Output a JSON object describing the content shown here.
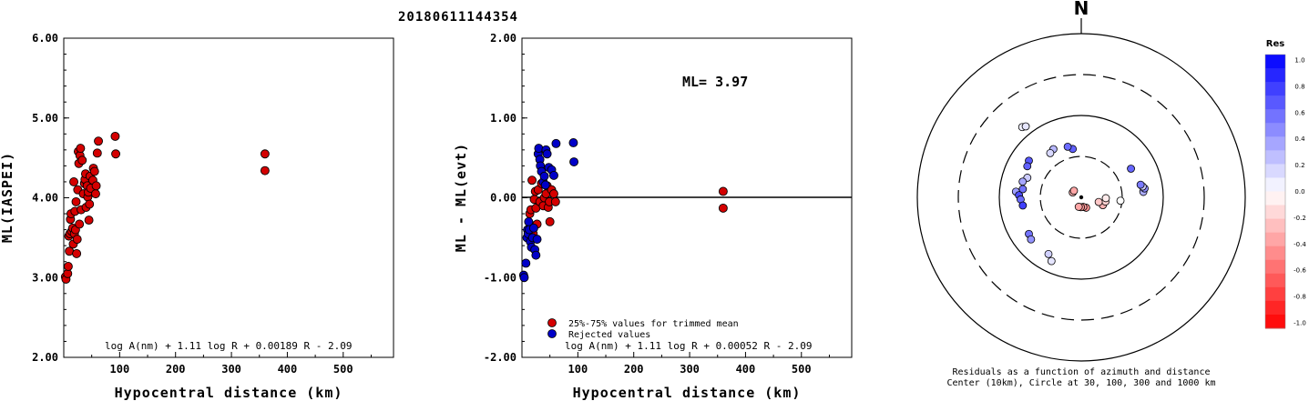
{
  "title": "20180611144354",
  "chart_data": [
    {
      "type": "scatter",
      "name": "ml-vs-distance",
      "xlabel": "Hypocentral distance (km)",
      "ylabel": "ML(IASPEI)",
      "xlim": [
        0,
        590
      ],
      "ylim": [
        2.0,
        6.0
      ],
      "xticks": [
        "100",
        "200",
        "300",
        "400",
        "500"
      ],
      "yticks": [
        "2.00",
        "3.00",
        "4.00",
        "5.00",
        "6.00"
      ],
      "formula": "log A(nm) + 1.11 log R + 0.00189 R - 2.09",
      "points": [
        [
          3,
          3.01
        ],
        [
          4,
          2.98
        ],
        [
          7,
          3.05
        ],
        [
          8,
          3.14
        ],
        [
          10,
          3.33
        ],
        [
          9,
          3.52
        ],
        [
          11,
          3.55
        ],
        [
          12,
          3.73
        ],
        [
          13,
          3.8
        ],
        [
          14,
          3.58
        ],
        [
          16,
          3.62
        ],
        [
          17,
          3.42
        ],
        [
          18,
          4.2
        ],
        [
          19,
          3.55
        ],
        [
          20,
          3.83
        ],
        [
          21,
          3.6
        ],
        [
          22,
          3.95
        ],
        [
          23,
          3.3
        ],
        [
          24,
          3.48
        ],
        [
          25,
          4.1
        ],
        [
          26,
          4.58
        ],
        [
          27,
          4.43
        ],
        [
          28,
          3.67
        ],
        [
          29,
          4.53
        ],
        [
          30,
          4.62
        ],
        [
          31,
          3.85
        ],
        [
          33,
          4.47
        ],
        [
          35,
          4.05
        ],
        [
          37,
          4.18
        ],
        [
          38,
          4.23
        ],
        [
          39,
          4.3
        ],
        [
          40,
          3.88
        ],
        [
          42,
          4.15
        ],
        [
          43,
          4.01
        ],
        [
          44,
          4.07
        ],
        [
          45,
          3.72
        ],
        [
          46,
          3.92
        ],
        [
          47,
          4.27
        ],
        [
          48,
          4.12
        ],
        [
          52,
          4.22
        ],
        [
          53,
          4.37
        ],
        [
          55,
          4.33
        ],
        [
          57,
          4.05
        ],
        [
          58,
          4.15
        ],
        [
          60,
          4.56
        ],
        [
          62,
          4.71
        ],
        [
          92,
          4.77
        ],
        [
          93,
          4.55
        ],
        [
          360,
          4.55
        ],
        [
          360,
          4.34
        ]
      ]
    },
    {
      "type": "scatter",
      "name": "residuals-vs-distance",
      "xlabel": "Hypocentral distance (km)",
      "ylabel": "ML - ML(evt)",
      "xlim": [
        0,
        590
      ],
      "ylim": [
        -2.0,
        2.0
      ],
      "xticks": [
        "100",
        "200",
        "300",
        "400",
        "500"
      ],
      "yticks": [
        "-2.00",
        "-1.00",
        "0.00",
        "1.00",
        "2.00"
      ],
      "ml_label": "ML= 3.97",
      "legend": [
        {
          "label": "25%-75% values for trimmed mean",
          "color": "#d40000"
        },
        {
          "label": "Rejected values",
          "color": "#0000c8"
        }
      ],
      "formula": "log A(nm) + 1.11 log R + 0.00052 R - 2.09",
      "series": [
        {
          "name": "25%-75% values for trimmed mean",
          "color": "#d40000",
          "points": [
            [
              14,
              -0.2
            ],
            [
              16,
              -0.15
            ],
            [
              18,
              0.22
            ],
            [
              19,
              -0.35
            ],
            [
              20,
              -0.45
            ],
            [
              22,
              -0.02
            ],
            [
              24,
              0.08
            ],
            [
              25,
              -0.13
            ],
            [
              27,
              -0.33
            ],
            [
              29,
              0.1
            ],
            [
              32,
              -0.05
            ],
            [
              35,
              0.18
            ],
            [
              38,
              -0.1
            ],
            [
              40,
              0.0
            ],
            [
              43,
              0.05
            ],
            [
              45,
              0.15
            ],
            [
              47,
              -0.12
            ],
            [
              49,
              -0.05
            ],
            [
              50,
              -0.3
            ],
            [
              53,
              0.1
            ],
            [
              57,
              0.05
            ],
            [
              60,
              -0.05
            ],
            [
              360,
              0.08
            ],
            [
              360,
              -0.13
            ]
          ]
        },
        {
          "name": "Rejected values",
          "color": "#0000c8",
          "points": [
            [
              3,
              -0.97
            ],
            [
              4,
              -1.0
            ],
            [
              7,
              -0.82
            ],
            [
              9,
              -0.5
            ],
            [
              10,
              -0.4
            ],
            [
              11,
              -0.45
            ],
            [
              12,
              -0.3
            ],
            [
              13,
              -0.4
            ],
            [
              15,
              -0.55
            ],
            [
              17,
              -0.62
            ],
            [
              19,
              -0.5
            ],
            [
              21,
              -0.38
            ],
            [
              23,
              -0.65
            ],
            [
              25,
              -0.72
            ],
            [
              27,
              -0.52
            ],
            [
              29,
              0.55
            ],
            [
              30,
              0.62
            ],
            [
              32,
              0.48
            ],
            [
              33,
              0.4
            ],
            [
              35,
              0.33
            ],
            [
              38,
              0.2
            ],
            [
              40,
              0.27
            ],
            [
              42,
              0.16
            ],
            [
              43,
              0.6
            ],
            [
              45,
              0.55
            ],
            [
              48,
              0.38
            ],
            [
              53,
              0.35
            ],
            [
              57,
              0.28
            ],
            [
              61,
              0.68
            ],
            [
              92,
              0.69
            ],
            [
              93,
              0.45
            ]
          ]
        }
      ]
    },
    {
      "type": "polar-scatter",
      "name": "azimuth-residuals",
      "north_label": "N",
      "caption_line1": "Residuals as a function of azimuth and distance",
      "caption_line2": "Center (10km), Circle at 30, 100, 300 and 1000 km",
      "colorbar_title": "Res",
      "colorbar_ticks": [
        "1.0",
        "0.8",
        "0.6",
        "0.4",
        "0.2",
        "0.0",
        "-0.2",
        "-0.4",
        "-0.6",
        "-0.8",
        "-1.0"
      ],
      "rings_km": [
        30,
        100,
        300,
        1000
      ],
      "points": [
        {
          "az": 350,
          "r": 0.3,
          "res": 0.62
        },
        {
          "az": 345,
          "r": 0.32,
          "res": 0.58
        },
        {
          "az": 330,
          "r": 0.34,
          "res": 0.28
        },
        {
          "az": 325,
          "r": 0.33,
          "res": 0.15
        },
        {
          "az": 305,
          "r": 0.39,
          "res": 0.66
        },
        {
          "az": 300,
          "r": 0.38,
          "res": 0.62
        },
        {
          "az": 290,
          "r": 0.35,
          "res": 0.2
        },
        {
          "az": 285,
          "r": 0.37,
          "res": 0.35
        },
        {
          "az": 278,
          "r": 0.36,
          "res": 0.55
        },
        {
          "az": 275,
          "r": 0.4,
          "res": 0.38
        },
        {
          "az": 272,
          "r": 0.38,
          "res": 0.7
        },
        {
          "az": 268,
          "r": 0.37,
          "res": 0.58
        },
        {
          "az": 262,
          "r": 0.36,
          "res": 0.75
        },
        {
          "az": 235,
          "r": 0.39,
          "res": 0.55
        },
        {
          "az": 230,
          "r": 0.4,
          "res": 0.42
        },
        {
          "az": 210,
          "r": 0.4,
          "res": 0.18
        },
        {
          "az": 205,
          "r": 0.43,
          "res": 0.1
        },
        {
          "az": 320,
          "r": 0.56,
          "res": 0.05
        },
        {
          "az": 322,
          "r": 0.55,
          "res": 0.1
        },
        {
          "az": 60,
          "r": 0.35,
          "res": 0.6
        },
        {
          "az": 85,
          "r": 0.38,
          "res": 0.32
        },
        {
          "az": 82,
          "r": 0.39,
          "res": 0.45
        },
        {
          "az": 80,
          "r": 0.38,
          "res": 0.18
        },
        {
          "az": 78,
          "r": 0.37,
          "res": 0.52
        },
        {
          "az": 95,
          "r": 0.24,
          "res": 0.0
        },
        {
          "az": 110,
          "r": 0.14,
          "res": -0.3
        },
        {
          "az": 100,
          "r": 0.15,
          "res": -0.18
        },
        {
          "az": 92,
          "r": 0.15,
          "res": -0.08
        },
        {
          "az": 105,
          "r": 0.11,
          "res": -0.22
        },
        {
          "az": 155,
          "r": 0.07,
          "res": -0.42
        },
        {
          "az": 168,
          "r": 0.06,
          "res": -0.38
        },
        {
          "az": 182,
          "r": 0.06,
          "res": -0.4
        },
        {
          "az": 195,
          "r": 0.06,
          "res": -0.35
        },
        {
          "az": 300,
          "r": 0.06,
          "res": -0.3
        },
        {
          "az": 312,
          "r": 0.06,
          "res": -0.35
        }
      ]
    }
  ]
}
